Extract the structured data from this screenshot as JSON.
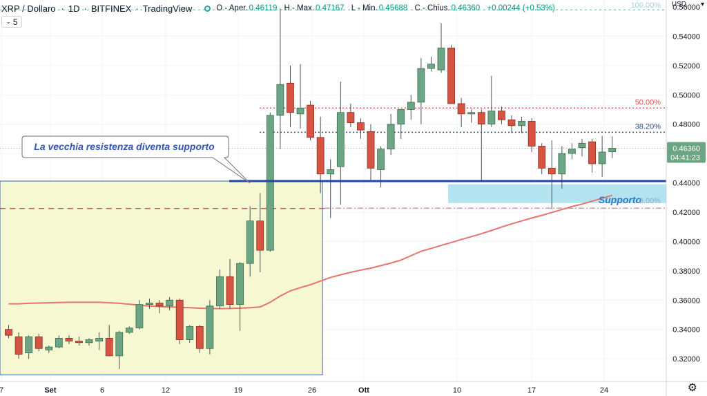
{
  "header": {
    "symbol": "XRP / Dollaro",
    "interval": "1D",
    "exchange": "BITFINEX",
    "platform": "TradingView",
    "ohlc_open_label": "O - Aper.",
    "ohlc_open": "0.46119",
    "ohlc_high_label": "H - Max.",
    "ohlc_high": "0.47167",
    "ohlc_low_label": "L - Min.",
    "ohlc_low": "0.45688",
    "ohlc_close_label": "C - Chius.",
    "ohlc_close": "0.46360",
    "ohlc_change": "+0.00244 (+0.53%)",
    "status_dot_color": "#26a69a"
  },
  "toolbar": {
    "interval_button": "5"
  },
  "price_axis": {
    "currency": "USD",
    "currency_chevron": "▾",
    "ticks": [
      "0.56000",
      "0.54000",
      "0.52000",
      "0.50000",
      "0.48000",
      "0.46000",
      "0.44000",
      "0.42000",
      "0.40000",
      "0.38000",
      "0.36000",
      "0.34000",
      "0.32000"
    ],
    "last_price": "0.46360",
    "countdown": "04:41:23"
  },
  "time_axis": {
    "labels": [
      "7",
      "Set",
      "6",
      "12",
      "19",
      "26",
      "Ott",
      "10",
      "17",
      "24"
    ]
  },
  "settings_icon": "⚙",
  "chart_data": {
    "type": "candlestick",
    "ylim": [
      0.3045,
      0.5647
    ],
    "colors": {
      "up": "#6ba583",
      "down": "#d75442",
      "ma": "#e8736c",
      "support_line": "#2244aa",
      "support_zone": "#b2e3ee",
      "rectangle": "#f5f8d0",
      "fib_50": "#e05050",
      "fib_382": "#2f4e8f",
      "fib_0_dashdot": "#c58a9a",
      "red_dashed": "#d0506b"
    },
    "candles": [
      {
        "o": 0.34,
        "h": 0.343,
        "l": 0.334,
        "c": 0.336
      },
      {
        "o": 0.335,
        "h": 0.338,
        "l": 0.32,
        "c": 0.323
      },
      {
        "o": 0.324,
        "h": 0.336,
        "l": 0.32,
        "c": 0.335
      },
      {
        "o": 0.335,
        "h": 0.337,
        "l": 0.325,
        "c": 0.327
      },
      {
        "o": 0.326,
        "h": 0.329,
        "l": 0.324,
        "c": 0.328
      },
      {
        "o": 0.328,
        "h": 0.336,
        "l": 0.327,
        "c": 0.334
      },
      {
        "o": 0.334,
        "h": 0.336,
        "l": 0.33,
        "c": 0.332
      },
      {
        "o": 0.332,
        "h": 0.335,
        "l": 0.329,
        "c": 0.331
      },
      {
        "o": 0.331,
        "h": 0.334,
        "l": 0.329,
        "c": 0.333
      },
      {
        "o": 0.332,
        "h": 0.338,
        "l": 0.326,
        "c": 0.334
      },
      {
        "o": 0.334,
        "h": 0.343,
        "l": 0.323,
        "c": 0.322
      },
      {
        "o": 0.322,
        "h": 0.339,
        "l": 0.313,
        "c": 0.338
      },
      {
        "o": 0.338,
        "h": 0.342,
        "l": 0.337,
        "c": 0.341
      },
      {
        "o": 0.341,
        "h": 0.36,
        "l": 0.34,
        "c": 0.357
      },
      {
        "o": 0.357,
        "h": 0.361,
        "l": 0.354,
        "c": 0.358
      },
      {
        "o": 0.358,
        "h": 0.36,
        "l": 0.351,
        "c": 0.356
      },
      {
        "o": 0.356,
        "h": 0.362,
        "l": 0.353,
        "c": 0.36
      },
      {
        "o": 0.36,
        "h": 0.361,
        "l": 0.33,
        "c": 0.333
      },
      {
        "o": 0.333,
        "h": 0.343,
        "l": 0.331,
        "c": 0.342
      },
      {
        "o": 0.342,
        "h": 0.343,
        "l": 0.324,
        "c": 0.327
      },
      {
        "o": 0.327,
        "h": 0.36,
        "l": 0.323,
        "c": 0.356
      },
      {
        "o": 0.356,
        "h": 0.381,
        "l": 0.354,
        "c": 0.376
      },
      {
        "o": 0.376,
        "h": 0.388,
        "l": 0.354,
        "c": 0.357
      },
      {
        "o": 0.357,
        "h": 0.386,
        "l": 0.339,
        "c": 0.385
      },
      {
        "o": 0.385,
        "h": 0.424,
        "l": 0.376,
        "c": 0.414
      },
      {
        "o": 0.414,
        "h": 0.433,
        "l": 0.379,
        "c": 0.394
      },
      {
        "o": 0.394,
        "h": 0.488,
        "l": 0.393,
        "c": 0.486
      },
      {
        "o": 0.486,
        "h": 0.559,
        "l": 0.463,
        "c": 0.507
      },
      {
        "o": 0.508,
        "h": 0.52,
        "l": 0.478,
        "c": 0.488
      },
      {
        "o": 0.487,
        "h": 0.521,
        "l": 0.477,
        "c": 0.491
      },
      {
        "o": 0.493,
        "h": 0.496,
        "l": 0.469,
        "c": 0.471
      },
      {
        "o": 0.471,
        "h": 0.485,
        "l": 0.433,
        "c": 0.446
      },
      {
        "o": 0.446,
        "h": 0.456,
        "l": 0.416,
        "c": 0.449
      },
      {
        "o": 0.451,
        "h": 0.509,
        "l": 0.425,
        "c": 0.488
      },
      {
        "o": 0.488,
        "h": 0.494,
        "l": 0.478,
        "c": 0.481
      },
      {
        "o": 0.481,
        "h": 0.484,
        "l": 0.47,
        "c": 0.476
      },
      {
        "o": 0.475,
        "h": 0.48,
        "l": 0.441,
        "c": 0.45
      },
      {
        "o": 0.449,
        "h": 0.465,
        "l": 0.437,
        "c": 0.463
      },
      {
        "o": 0.463,
        "h": 0.487,
        "l": 0.459,
        "c": 0.48
      },
      {
        "o": 0.48,
        "h": 0.49,
        "l": 0.47,
        "c": 0.49
      },
      {
        "o": 0.49,
        "h": 0.5,
        "l": 0.483,
        "c": 0.495
      },
      {
        "o": 0.495,
        "h": 0.525,
        "l": 0.48,
        "c": 0.518
      },
      {
        "o": 0.518,
        "h": 0.526,
        "l": 0.516,
        "c": 0.521
      },
      {
        "o": 0.517,
        "h": 0.549,
        "l": 0.515,
        "c": 0.532
      },
      {
        "o": 0.532,
        "h": 0.534,
        "l": 0.494,
        "c": 0.494
      },
      {
        "o": 0.494,
        "h": 0.498,
        "l": 0.478,
        "c": 0.487
      },
      {
        "o": 0.487,
        "h": 0.49,
        "l": 0.481,
        "c": 0.488
      },
      {
        "o": 0.488,
        "h": 0.49,
        "l": 0.441,
        "c": 0.48
      },
      {
        "o": 0.48,
        "h": 0.513,
        "l": 0.478,
        "c": 0.489
      },
      {
        "o": 0.489,
        "h": 0.492,
        "l": 0.48,
        "c": 0.483
      },
      {
        "o": 0.483,
        "h": 0.486,
        "l": 0.474,
        "c": 0.479
      },
      {
        "o": 0.479,
        "h": 0.485,
        "l": 0.474,
        "c": 0.482
      },
      {
        "o": 0.482,
        "h": 0.484,
        "l": 0.461,
        "c": 0.465
      },
      {
        "o": 0.465,
        "h": 0.467,
        "l": 0.446,
        "c": 0.45
      },
      {
        "o": 0.45,
        "h": 0.469,
        "l": 0.422,
        "c": 0.446
      },
      {
        "o": 0.446,
        "h": 0.465,
        "l": 0.436,
        "c": 0.46
      },
      {
        "o": 0.46,
        "h": 0.467,
        "l": 0.456,
        "c": 0.463
      },
      {
        "o": 0.464,
        "h": 0.47,
        "l": 0.458,
        "c": 0.467
      },
      {
        "o": 0.468,
        "h": 0.47,
        "l": 0.447,
        "c": 0.453
      },
      {
        "o": 0.453,
        "h": 0.472,
        "l": 0.444,
        "c": 0.461
      },
      {
        "o": 0.4612,
        "h": 0.4717,
        "l": 0.4569,
        "c": 0.4636
      }
    ],
    "moving_average": [
      0.3575,
      0.3575,
      0.3578,
      0.358,
      0.3582,
      0.3584,
      0.3585,
      0.3585,
      0.3585,
      0.3585,
      0.3582,
      0.3578,
      0.3572,
      0.3566,
      0.356,
      0.3556,
      0.3553,
      0.3551,
      0.3548,
      0.3545,
      0.3543,
      0.3542,
      0.3543,
      0.3545,
      0.3548,
      0.3553,
      0.3585,
      0.3628,
      0.3663,
      0.3685,
      0.3705,
      0.373,
      0.3755,
      0.3773,
      0.379,
      0.3805,
      0.3818,
      0.3835,
      0.3853,
      0.3873,
      0.3903,
      0.3933,
      0.3953,
      0.3973,
      0.3993,
      0.4013,
      0.4033,
      0.4053,
      0.4075,
      0.4098,
      0.412,
      0.414,
      0.416,
      0.4178,
      0.4198,
      0.4218,
      0.4238,
      0.4255,
      0.4275,
      0.4295,
      0.4315
    ],
    "levels": {
      "support": 0.4412,
      "fib_100": 0.558,
      "fib_50": 0.491,
      "fib_382": 0.4745,
      "fib_0": 0.4227,
      "red_dashed": 0.4225,
      "zone_top": 0.439,
      "zone_bottom": 0.4262,
      "rect_top": 0.4412,
      "rect_bottom": 0.309
    },
    "fib_labels": {
      "fib_100": "100.00%",
      "fib_50": "50.00%",
      "fib_382": "38.20%",
      "fib_0": "0.00%"
    },
    "annotations": {
      "callout": "La vecchia resistenza diventa supporto",
      "zone_label": "Supporto"
    }
  }
}
